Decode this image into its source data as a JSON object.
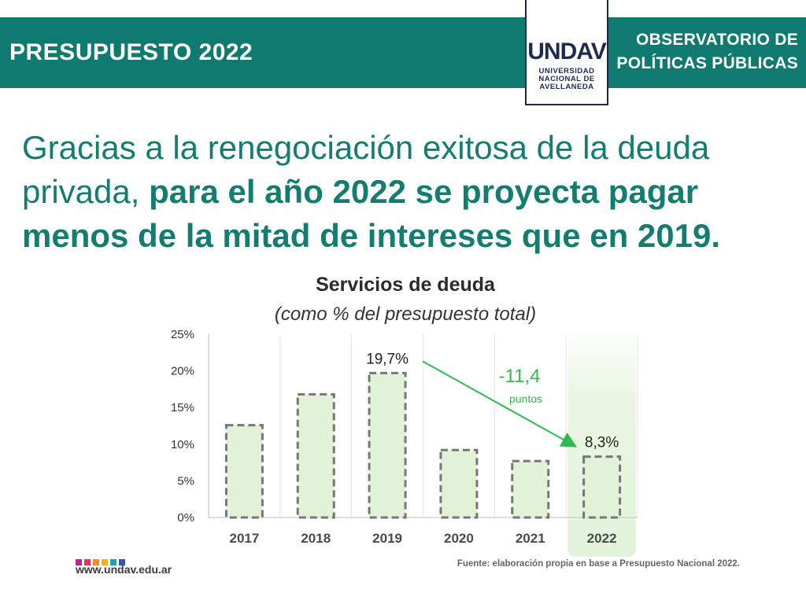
{
  "header": {
    "left_title": "PRESUPUESTO 2022",
    "right_title_line1": "OBSERVATORIO DE",
    "right_title_line2": "POLÍTICAS PÚBLICAS",
    "logo_mark": "UNDAV",
    "logo_line1": "UNIVERSIDAD",
    "logo_line2": "NACIONAL DE",
    "logo_line3": "AVELLANEDA"
  },
  "headline": {
    "normal": "Gracias a la renegociación exitosa de la deuda privada, ",
    "bold": "para el año 2022 se proyecta pagar menos de la mitad de intereses que en 2019."
  },
  "chart_data": {
    "type": "bar",
    "title": "Servicios de deuda",
    "subtitle": "(como % del presupuesto total)",
    "categories": [
      "2017",
      "2018",
      "2019",
      "2020",
      "2021",
      "2022"
    ],
    "values": [
      12.6,
      16.8,
      19.7,
      9.2,
      7.7,
      8.3
    ],
    "ylim": [
      0,
      25
    ],
    "yticks": [
      0,
      5,
      10,
      15,
      20,
      25
    ],
    "ytick_labels": [
      "0%",
      "5%",
      "10%",
      "15%",
      "20%",
      "25%"
    ],
    "data_labels": [
      {
        "category": "2019",
        "text": "19,7%"
      },
      {
        "category": "2022",
        "text": "8,3%"
      }
    ],
    "annotation": {
      "value_text": "-11,4",
      "unit_text": "puntos",
      "from": "2019",
      "to": "2022"
    },
    "highlight_category": "2022",
    "bar_fill": "#e1f2d6",
    "bar_border": "#777777",
    "arrow_color": "#2dbb4e",
    "xlabel": "",
    "ylabel": ""
  },
  "footer": {
    "url": "www.undav.edu.ar",
    "source": "Fuente: elaboración propia en base a Presupuesto Nacional 2022.",
    "squares": [
      "#b9278e",
      "#e0335d",
      "#f08a24",
      "#f6b317",
      "#1aa6b7",
      "#3a56a5"
    ]
  }
}
